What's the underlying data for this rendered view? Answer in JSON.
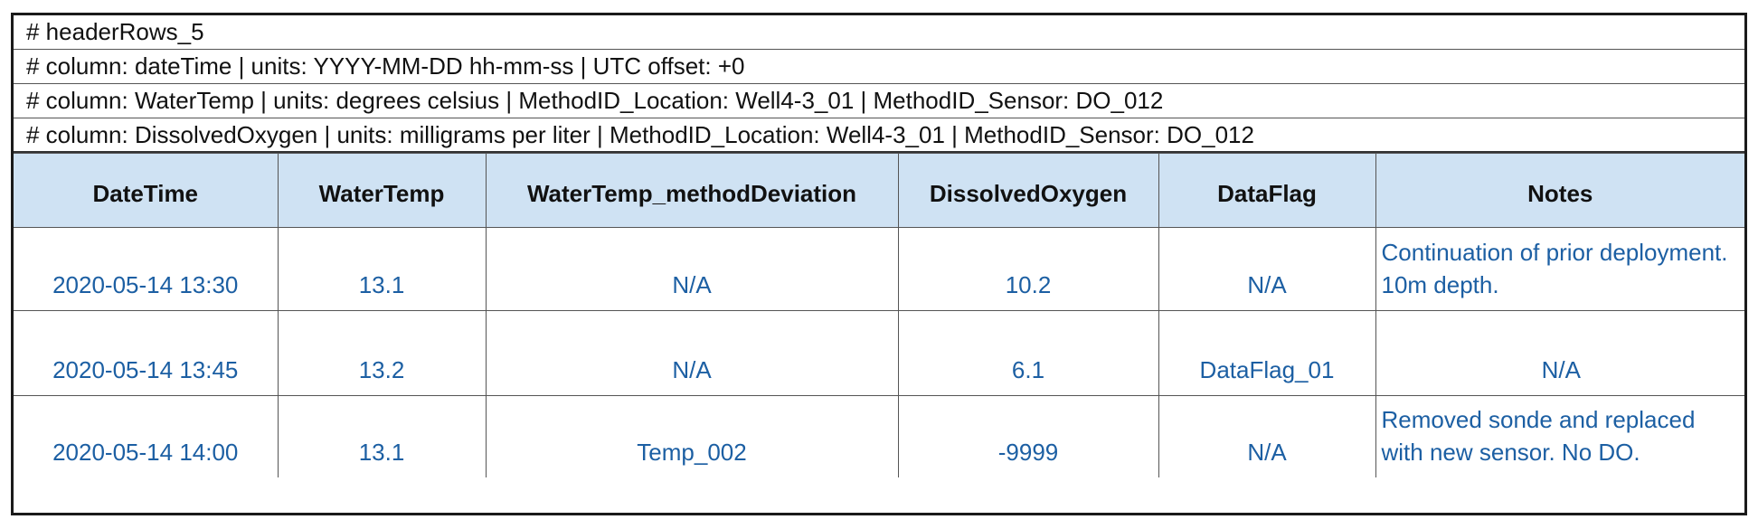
{
  "header_rows": [
    "# headerRows_5",
    "# column: dateTime | units: YYYY-MM-DD hh-mm-ss | UTC offset: +0",
    "# column: WaterTemp | units: degrees celsius | MethodID_Location: Well4-3_01 | MethodID_Sensor: DO_012",
    "# column: DissolvedOxygen | units: milligrams per liter | MethodID_Location: Well4-3_01 | MethodID_Sensor: DO_012"
  ],
  "table": {
    "columns": [
      "DateTime",
      "WaterTemp",
      "WaterTemp_methodDeviation",
      "DissolvedOxygen",
      "DataFlag",
      "Notes"
    ],
    "rows": [
      [
        "2020-05-14 13:30",
        "13.1",
        "N/A",
        "10.2",
        "N/A",
        "Continuation of prior deployment. 10m depth."
      ],
      [
        "2020-05-14 13:45",
        "13.2",
        "N/A",
        "6.1",
        "DataFlag_01",
        "N/A"
      ],
      [
        "2020-05-14 14:00",
        "13.1",
        "Temp_002",
        "-9999",
        "N/A",
        "Removed sonde and replaced with new sensor. No DO."
      ]
    ]
  },
  "colors": {
    "header_fill": "#cfe2f3",
    "value_text": "#1c5fa3",
    "border": "#1a1a1a"
  }
}
